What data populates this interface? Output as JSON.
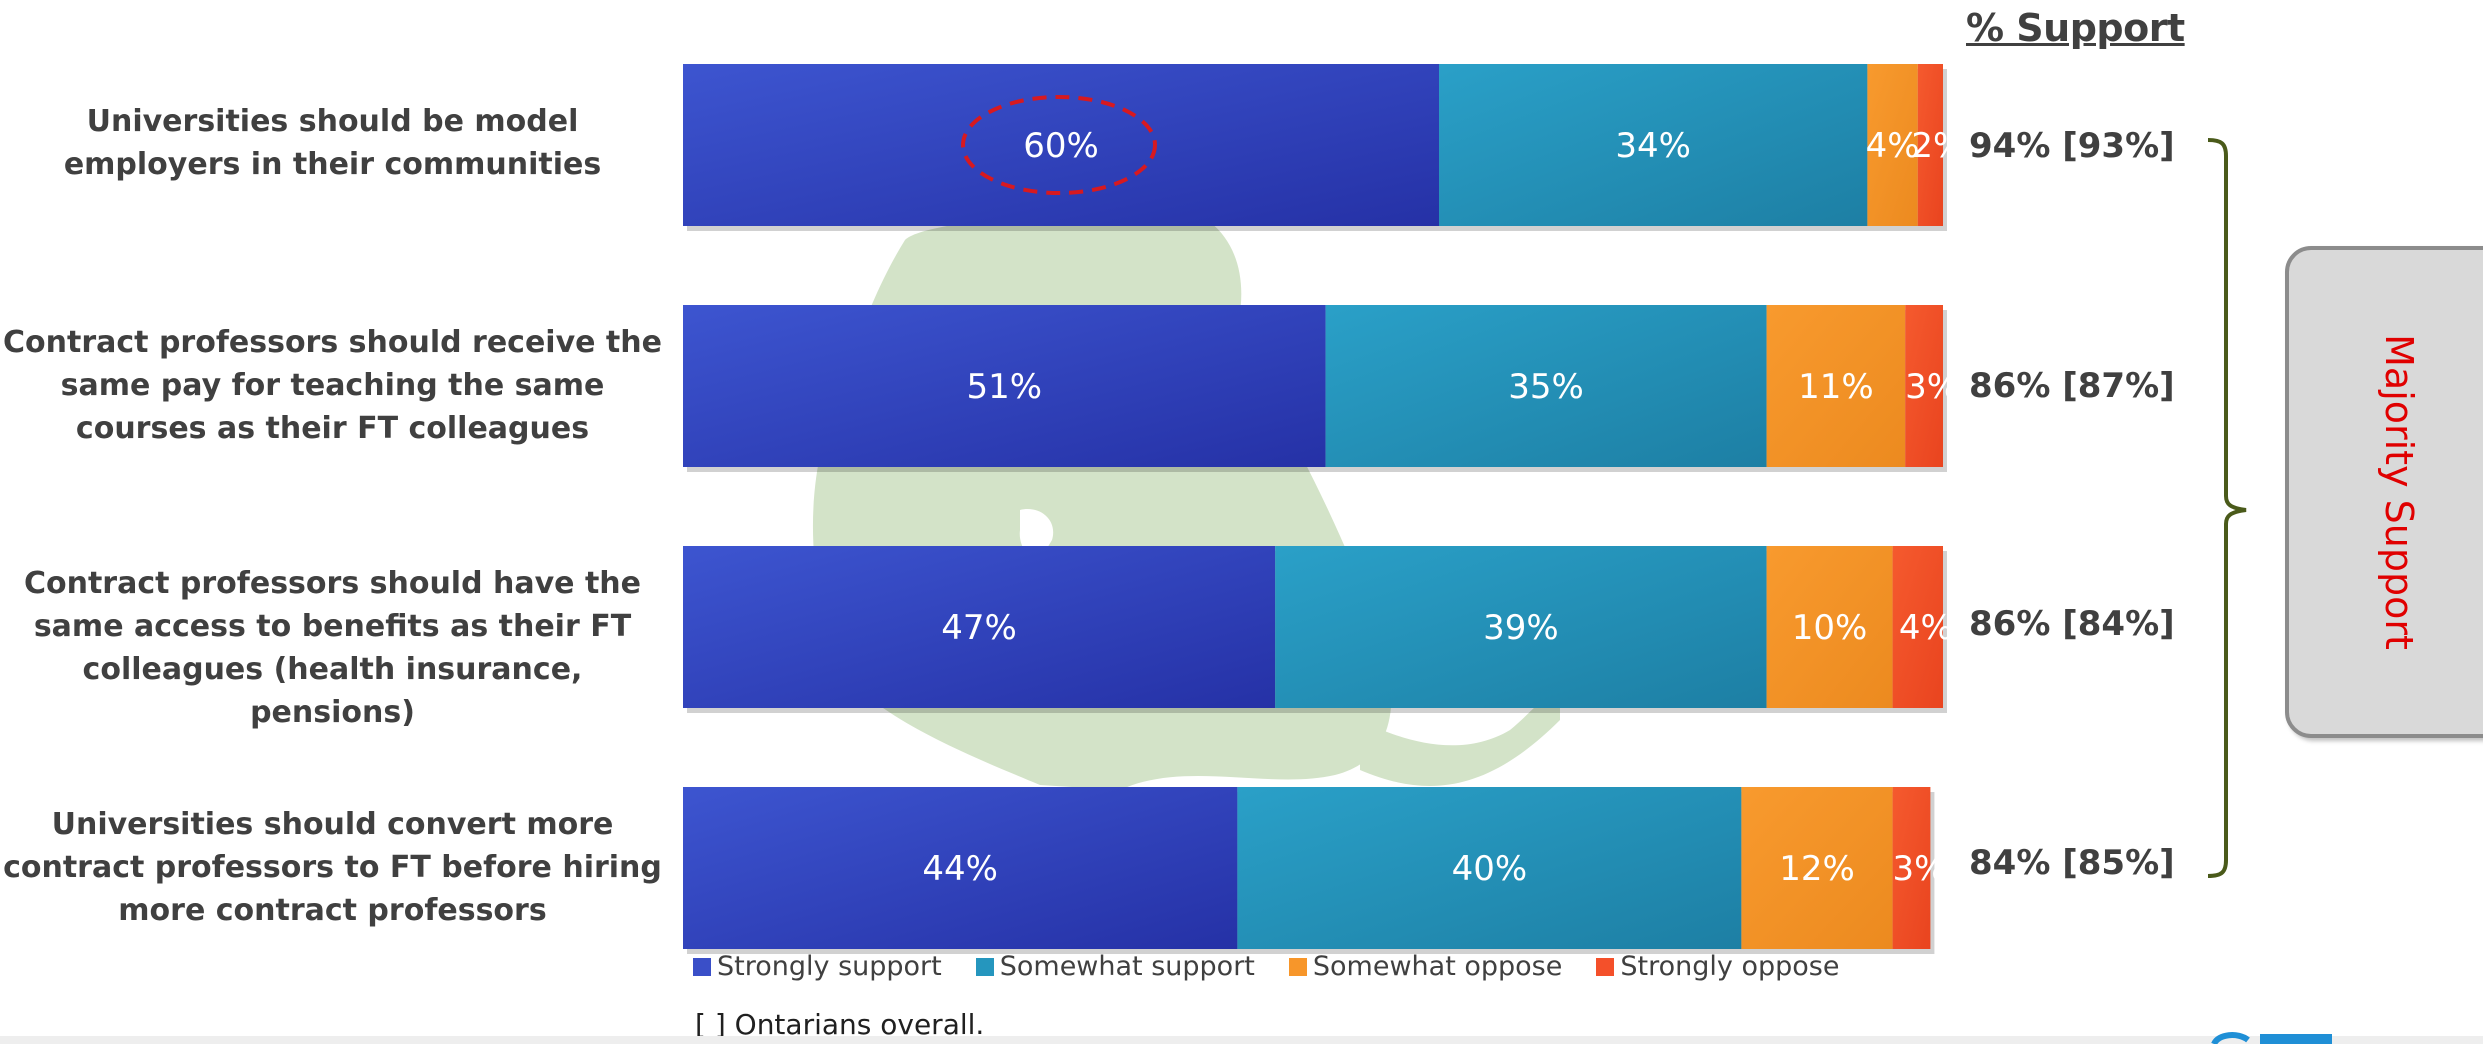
{
  "header": {
    "support_title": "% Support"
  },
  "colors": {
    "strongly_support": "#3a4fc8",
    "somewhat_support": "#2596be",
    "somewhat_oppose": "#f7962a",
    "strongly_oppose": "#f4502a",
    "map": "#d3e3c8",
    "highlight_circle": "#d71920",
    "callout_text": "#e00000"
  },
  "rows": [
    {
      "label": "Universities should be model employers in their communities",
      "support": "94% [93%]"
    },
    {
      "label": "Contract professors should receive the same pay for teaching the same courses as their FT colleagues",
      "support": "86% [87%]"
    },
    {
      "label": "Contract professors should have the same access to benefits as their FT colleagues (health insurance, pensions)",
      "support": "86% [84%]"
    },
    {
      "label": "Universities should convert more contract professors to FT before hiring more contract professors",
      "support": "84% [85%]"
    }
  ],
  "legend": {
    "items": [
      {
        "label": "Strongly support",
        "color": "#3a4fc8"
      },
      {
        "label": "Somewhat support",
        "color": "#2596be"
      },
      {
        "label": "Somewhat oppose",
        "color": "#f7962a"
      },
      {
        "label": "Strongly oppose",
        "color": "#f4502a"
      }
    ]
  },
  "footnote": "[ ] Ontarians overall.",
  "callout": {
    "text": "Majority Support"
  },
  "chart_data": {
    "type": "bar",
    "orientation": "horizontal",
    "stacked": true,
    "categories": [
      "Universities should be model employers in their communities",
      "Contract professors should receive the same pay for teaching the same courses as their FT colleagues",
      "Contract professors should have the same access to benefits as their FT colleagues (health insurance, pensions)",
      "Universities should convert more contract professors to FT before hiring more contract professors"
    ],
    "series": [
      {
        "name": "Strongly support",
        "values": [
          60,
          51,
          47,
          44
        ],
        "labels": [
          "60%",
          "51%",
          "47%",
          "44%"
        ]
      },
      {
        "name": "Somewhat support",
        "values": [
          34,
          35,
          39,
          40
        ],
        "labels": [
          "34%",
          "35%",
          "39%",
          "40%"
        ]
      },
      {
        "name": "Somewhat oppose",
        "values": [
          4,
          11,
          10,
          12
        ],
        "labels": [
          "4%",
          "11%",
          "10%",
          "12%"
        ]
      },
      {
        "name": "Strongly oppose",
        "values": [
          2,
          3,
          4,
          3
        ],
        "labels": [
          "2%",
          "3%",
          "4%",
          "3%"
        ]
      }
    ],
    "xlim": [
      0,
      100
    ],
    "legend_position": "bottom",
    "grid": false,
    "highlighted_value": "60%"
  }
}
